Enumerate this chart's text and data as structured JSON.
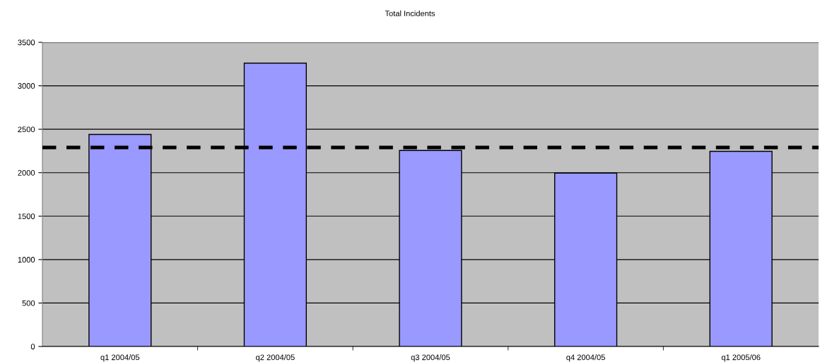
{
  "chart_data": {
    "type": "bar",
    "title": "Total Incidents",
    "categories": [
      "q1 2004/05",
      "q2 2004/05",
      "q3 2004/05",
      "q4 2004/05",
      "q1 2005/06"
    ],
    "values": [
      2440,
      3260,
      2255,
      1995,
      2245
    ],
    "color": "#9999ff",
    "ylim": [
      0,
      3500
    ],
    "yticks": [
      0,
      500,
      1000,
      1500,
      2000,
      2500,
      3000,
      3500
    ],
    "grid": "y",
    "ref_lines": [
      {
        "axis": "y",
        "value": 2290,
        "color": "#000000",
        "line_style": "dashed"
      }
    ]
  }
}
